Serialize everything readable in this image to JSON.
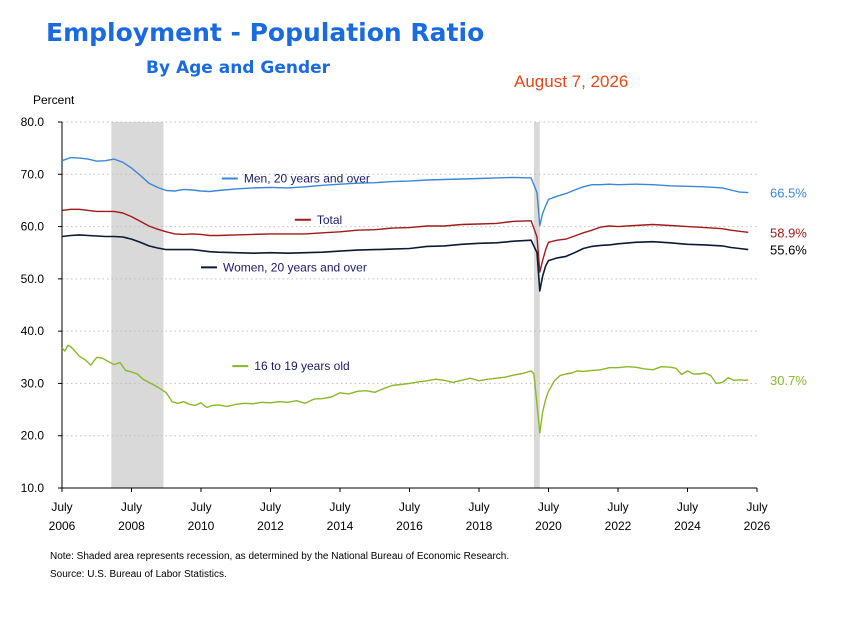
{
  "header": {
    "title": "Employment - Population Ratio",
    "subtitle": "By Age and Gender",
    "date": "August 7, 2026"
  },
  "notes": {
    "note": "Note: Shaded area represents recession, as determined by the National Bureau of Economic Research.",
    "source": "Source: U.S. Bureau of Labor Statistics."
  },
  "chart_data": {
    "type": "line",
    "ylabel": "Percent",
    "ylim": [
      10,
      80
    ],
    "xlim": [
      2006.5,
      2026.5
    ],
    "yticks": [
      "10.0",
      "20.0",
      "30.0",
      "40.0",
      "50.0",
      "60.0",
      "70.0",
      "80.0"
    ],
    "xticks": [
      {
        "month": "July",
        "year": "2006"
      },
      {
        "month": "July",
        "year": "2008"
      },
      {
        "month": "July",
        "year": "2010"
      },
      {
        "month": "July",
        "year": "2012"
      },
      {
        "month": "July",
        "year": "2014"
      },
      {
        "month": "July",
        "year": "2016"
      },
      {
        "month": "July",
        "year": "2018"
      },
      {
        "month": "July",
        "year": "2020"
      },
      {
        "month": "July",
        "year": "2022"
      },
      {
        "month": "July",
        "year": "2024"
      },
      {
        "month": "July",
        "year": "2026"
      }
    ],
    "grid": true,
    "recessions": [
      [
        2007.92,
        2009.42
      ],
      [
        2020.08,
        2020.25
      ]
    ],
    "series": [
      {
        "name": "Men, 20 years and over",
        "color": "#3a87d8",
        "end_label": "66.5%",
        "x": [
          2006.5,
          2006.75,
          2007.0,
          2007.25,
          2007.5,
          2007.75,
          2008.0,
          2008.25,
          2008.5,
          2008.75,
          2009.0,
          2009.25,
          2009.5,
          2009.75,
          2010.0,
          2010.25,
          2010.5,
          2010.75,
          2011.0,
          2011.5,
          2012.0,
          2012.5,
          2013.0,
          2013.5,
          2014.0,
          2014.5,
          2015.0,
          2015.5,
          2016.0,
          2016.5,
          2017.0,
          2017.5,
          2018.0,
          2018.5,
          2019.0,
          2019.5,
          2020.0,
          2020.17,
          2020.25,
          2020.33,
          2020.42,
          2020.5,
          2020.75,
          2021.0,
          2021.25,
          2021.5,
          2021.75,
          2022.0,
          2022.25,
          2022.5,
          2023.0,
          2023.5,
          2024.0,
          2024.5,
          2025.0,
          2025.5,
          2025.75,
          2026.0,
          2026.25
        ],
        "values": [
          72.6,
          73.2,
          73.1,
          72.9,
          72.5,
          72.6,
          72.9,
          72.3,
          71.2,
          69.8,
          68.3,
          67.5,
          66.9,
          66.8,
          67.1,
          67.0,
          66.8,
          66.7,
          66.9,
          67.2,
          67.4,
          67.5,
          67.4,
          67.6,
          67.9,
          68.1,
          68.3,
          68.4,
          68.6,
          68.7,
          68.9,
          69.0,
          69.1,
          69.2,
          69.3,
          69.4,
          69.3,
          66.5,
          60.2,
          62.5,
          64.0,
          65.2,
          65.8,
          66.3,
          67.0,
          67.6,
          68.0,
          68.0,
          68.1,
          68.0,
          68.1,
          68.0,
          67.8,
          67.7,
          67.6,
          67.4,
          67.0,
          66.6,
          66.5
        ]
      },
      {
        "name": "Total",
        "color": "#a01a1a",
        "end_label": "58.9%",
        "x": [
          2006.5,
          2006.75,
          2007.0,
          2007.25,
          2007.5,
          2007.75,
          2008.0,
          2008.25,
          2008.5,
          2008.75,
          2009.0,
          2009.25,
          2009.5,
          2009.75,
          2010.0,
          2010.25,
          2010.5,
          2010.75,
          2011.0,
          2011.5,
          2012.0,
          2012.5,
          2013.0,
          2013.5,
          2014.0,
          2014.5,
          2015.0,
          2015.5,
          2016.0,
          2016.5,
          2017.0,
          2017.5,
          2018.0,
          2018.5,
          2019.0,
          2019.5,
          2020.0,
          2020.17,
          2020.25,
          2020.33,
          2020.42,
          2020.5,
          2020.75,
          2021.0,
          2021.25,
          2021.5,
          2021.75,
          2022.0,
          2022.25,
          2022.5,
          2023.0,
          2023.5,
          2024.0,
          2024.5,
          2025.0,
          2025.5,
          2025.75,
          2026.0,
          2026.25
        ],
        "values": [
          63.1,
          63.3,
          63.3,
          63.1,
          62.9,
          62.9,
          62.9,
          62.6,
          61.9,
          61.0,
          60.1,
          59.5,
          59.0,
          58.6,
          58.5,
          58.6,
          58.5,
          58.3,
          58.3,
          58.4,
          58.5,
          58.6,
          58.6,
          58.6,
          58.8,
          59.0,
          59.3,
          59.4,
          59.7,
          59.8,
          60.1,
          60.1,
          60.4,
          60.5,
          60.6,
          61.0,
          61.1,
          58.0,
          51.3,
          53.5,
          55.6,
          57.0,
          57.4,
          57.6,
          58.2,
          58.8,
          59.3,
          59.9,
          60.1,
          60.0,
          60.2,
          60.4,
          60.2,
          60.0,
          59.8,
          59.6,
          59.3,
          59.1,
          58.9
        ]
      },
      {
        "name": "Women, 20 years and over",
        "color": "#0d1a33",
        "end_label": "55.6%",
        "x": [
          2006.5,
          2006.75,
          2007.0,
          2007.25,
          2007.5,
          2007.75,
          2008.0,
          2008.25,
          2008.5,
          2008.75,
          2009.0,
          2009.25,
          2009.5,
          2009.75,
          2010.0,
          2010.25,
          2010.5,
          2010.75,
          2011.0,
          2011.5,
          2012.0,
          2012.5,
          2013.0,
          2013.5,
          2014.0,
          2014.5,
          2015.0,
          2015.5,
          2016.0,
          2016.5,
          2017.0,
          2017.5,
          2018.0,
          2018.5,
          2019.0,
          2019.5,
          2020.0,
          2020.17,
          2020.25,
          2020.33,
          2020.42,
          2020.5,
          2020.75,
          2021.0,
          2021.25,
          2021.5,
          2021.75,
          2022.0,
          2022.25,
          2022.5,
          2023.0,
          2023.5,
          2024.0,
          2024.5,
          2025.0,
          2025.5,
          2025.75,
          2026.0,
          2026.25
        ],
        "values": [
          58.1,
          58.3,
          58.4,
          58.3,
          58.2,
          58.1,
          58.1,
          58.0,
          57.6,
          57.0,
          56.3,
          55.9,
          55.6,
          55.6,
          55.6,
          55.6,
          55.4,
          55.2,
          55.1,
          55.0,
          54.9,
          55.0,
          54.9,
          55.0,
          55.1,
          55.3,
          55.5,
          55.6,
          55.7,
          55.8,
          56.2,
          56.3,
          56.6,
          56.8,
          56.9,
          57.2,
          57.4,
          55.0,
          47.7,
          50.5,
          52.5,
          53.5,
          54.0,
          54.3,
          55.0,
          55.8,
          56.2,
          56.4,
          56.5,
          56.7,
          57.0,
          57.1,
          56.9,
          56.6,
          56.5,
          56.3,
          56.0,
          55.8,
          55.6
        ]
      },
      {
        "name": "16 to 19 years old",
        "color": "#8ab82a",
        "end_label": "30.7%",
        "x": [
          2006.5,
          2006.58,
          2006.67,
          2006.75,
          2006.83,
          2006.92,
          2007.0,
          2007.17,
          2007.33,
          2007.5,
          2007.67,
          2007.83,
          2008.0,
          2008.17,
          2008.33,
          2008.5,
          2008.67,
          2008.83,
          2009.0,
          2009.17,
          2009.33,
          2009.5,
          2009.67,
          2009.83,
          2010.0,
          2010.17,
          2010.33,
          2010.5,
          2010.67,
          2010.83,
          2011.0,
          2011.25,
          2011.5,
          2011.75,
          2012.0,
          2012.25,
          2012.5,
          2012.75,
          2013.0,
          2013.25,
          2013.5,
          2013.75,
          2014.0,
          2014.25,
          2014.5,
          2014.75,
          2015.0,
          2015.25,
          2015.5,
          2015.75,
          2016.0,
          2016.25,
          2016.5,
          2016.75,
          2017.0,
          2017.25,
          2017.5,
          2017.75,
          2018.0,
          2018.25,
          2018.5,
          2018.75,
          2019.0,
          2019.25,
          2019.5,
          2019.75,
          2020.0,
          2020.08,
          2020.17,
          2020.25,
          2020.33,
          2020.42,
          2020.5,
          2020.67,
          2020.83,
          2021.0,
          2021.17,
          2021.33,
          2021.5,
          2021.75,
          2022.0,
          2022.25,
          2022.5,
          2022.75,
          2023.0,
          2023.25,
          2023.5,
          2023.75,
          2024.0,
          2024.17,
          2024.33,
          2024.5,
          2024.67,
          2024.83,
          2025.0,
          2025.17,
          2025.33,
          2025.5,
          2025.67,
          2025.83,
          2026.0,
          2026.17,
          2026.25
        ],
        "values": [
          36.8,
          36.2,
          37.3,
          37.0,
          36.5,
          35.8,
          35.2,
          34.5,
          33.5,
          35.0,
          34.8,
          34.2,
          33.6,
          34.0,
          32.5,
          32.2,
          31.8,
          30.8,
          30.2,
          29.6,
          29.0,
          28.2,
          26.5,
          26.2,
          26.5,
          26.0,
          25.8,
          26.3,
          25.4,
          25.8,
          25.9,
          25.6,
          26.0,
          26.2,
          26.1,
          26.4,
          26.3,
          26.5,
          26.4,
          26.7,
          26.2,
          27.0,
          27.1,
          27.4,
          28.2,
          28.0,
          28.5,
          28.6,
          28.3,
          29.0,
          29.6,
          29.8,
          30.0,
          30.3,
          30.5,
          30.8,
          30.6,
          30.2,
          30.6,
          31.0,
          30.5,
          30.8,
          31.0,
          31.2,
          31.6,
          31.9,
          32.4,
          31.8,
          26.0,
          20.5,
          24.5,
          27.0,
          28.5,
          30.5,
          31.5,
          31.8,
          32.0,
          32.4,
          32.3,
          32.5,
          32.6,
          33.0,
          33.0,
          33.2,
          33.1,
          32.8,
          32.6,
          33.2,
          33.1,
          32.9,
          31.7,
          32.4,
          31.8,
          31.8,
          32.0,
          31.5,
          30.0,
          30.2,
          31.1,
          30.6,
          30.7,
          30.6,
          30.7
        ]
      }
    ],
    "legend_labels": [
      {
        "series": 0,
        "text": "Men, 20 years and over",
        "x": 2011.1,
        "y": 69.2
      },
      {
        "series": 1,
        "text": "Total",
        "x": 2013.2,
        "y": 61.3
      },
      {
        "series": 2,
        "text": "Women, 20 years and over",
        "x": 2010.5,
        "y": 52.2
      },
      {
        "series": 3,
        "text": "16 to 19 years old",
        "x": 2011.4,
        "y": 33.3
      }
    ]
  }
}
